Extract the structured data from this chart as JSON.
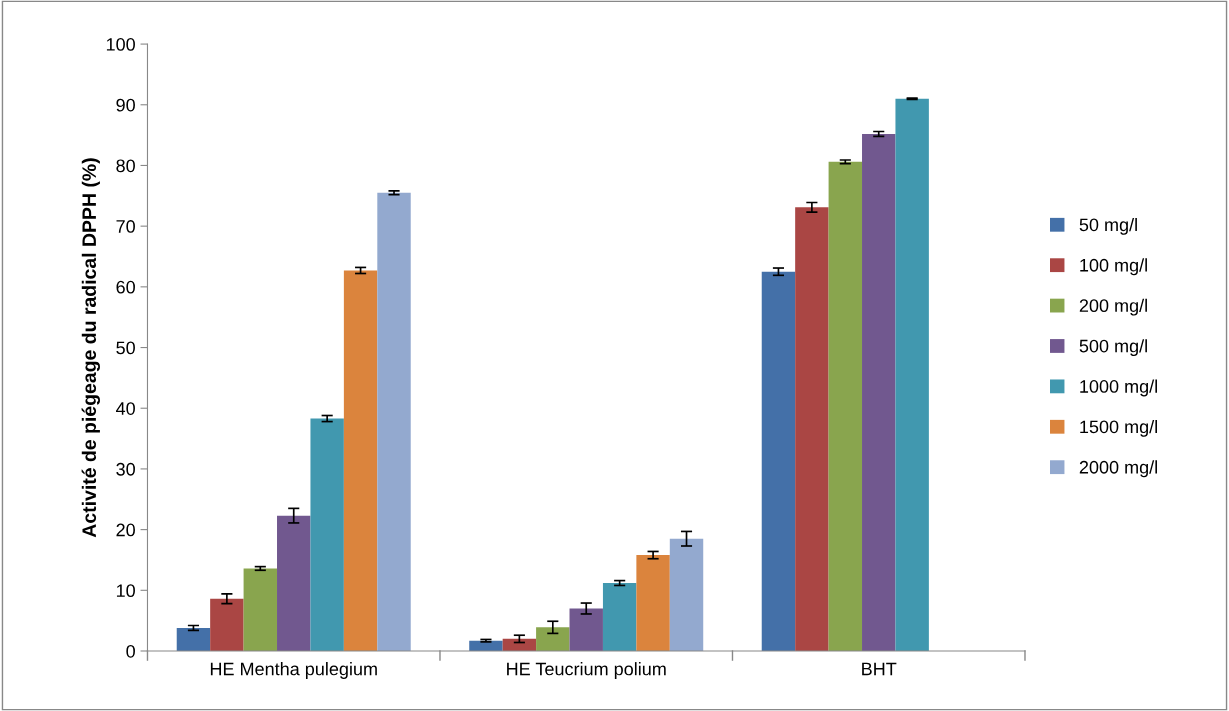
{
  "chart_data": {
    "type": "bar",
    "ylabel": "Activité de piégeage du radical DPPH (%)",
    "categories": [
      "HE Mentha pulegium",
      "HE Teucrium polium",
      "BHT"
    ],
    "series": [
      {
        "name": "50 mg/l",
        "color": "#4470a8",
        "values": [
          3.8,
          1.7,
          62.5
        ],
        "errors": [
          0.4,
          0.2,
          0.6
        ]
      },
      {
        "name": "100 mg/l",
        "color": "#aa4644",
        "values": [
          8.6,
          2.0,
          73.1
        ],
        "errors": [
          0.8,
          0.6,
          0.8
        ]
      },
      {
        "name": "200 mg/l",
        "color": "#89a54e",
        "values": [
          13.6,
          3.9,
          80.6
        ],
        "errors": [
          0.3,
          1.0,
          0.3
        ]
      },
      {
        "name": "500 mg/l",
        "color": "#71588f",
        "values": [
          22.3,
          7.0,
          85.2
        ],
        "errors": [
          1.2,
          0.9,
          0.4
        ]
      },
      {
        "name": "1000 mg/l",
        "color": "#4198af",
        "values": [
          38.3,
          11.2,
          91.0
        ],
        "errors": [
          0.5,
          0.4,
          0.1
        ]
      },
      {
        "name": "1500 mg/l",
        "color": "#db843d",
        "values": [
          62.7,
          15.8,
          null
        ],
        "errors": [
          0.5,
          0.6,
          null
        ]
      },
      {
        "name": "2000 mg/l",
        "color": "#93a9cf",
        "values": [
          75.5,
          18.5,
          null
        ],
        "errors": [
          0.3,
          1.2,
          null
        ]
      }
    ],
    "ylim": [
      0,
      100
    ],
    "yticks": [
      0,
      10,
      20,
      30,
      40,
      50,
      60,
      70,
      80,
      90,
      100
    ],
    "grid": false,
    "legend": "right"
  }
}
